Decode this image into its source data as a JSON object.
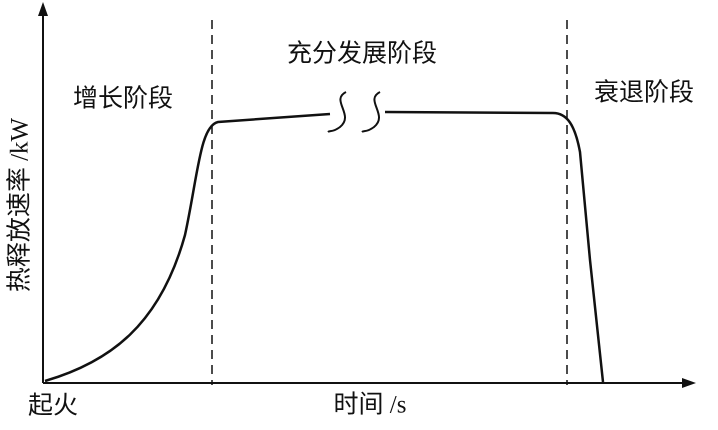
{
  "axes": {
    "y_label": "热释放速率 /kW",
    "x_label": "时间 /s",
    "origin_label": "起火"
  },
  "phases": [
    {
      "label": "增长阶段"
    },
    {
      "label": "充分发展阶段"
    },
    {
      "label": "衰退阶段"
    }
  ]
}
